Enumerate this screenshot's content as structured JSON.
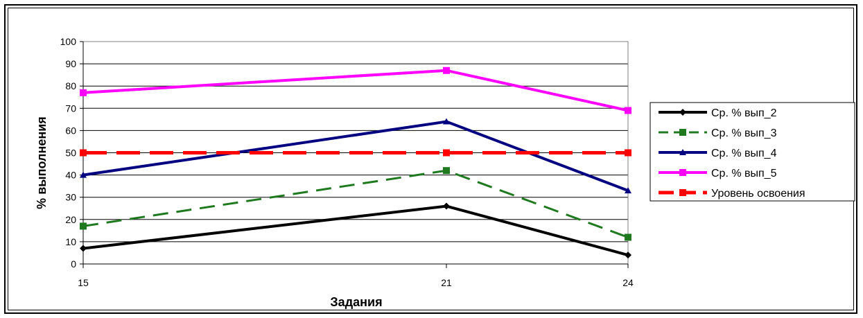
{
  "chart_data": {
    "type": "line",
    "title": "",
    "xlabel": "Задания",
    "ylabel": "% выполнения",
    "x": [
      "15",
      "21",
      "24"
    ],
    "ylim": [
      0,
      100
    ],
    "yticks": [
      "0",
      "10",
      "20",
      "30",
      "40",
      "50",
      "60",
      "70",
      "80",
      "90",
      "100"
    ],
    "grid": "horizontal",
    "legend_position": "right",
    "series": [
      {
        "name": "Ср. % вып_2",
        "values": [
          7,
          26,
          4
        ],
        "color": "#000000",
        "marker": "diamond",
        "dash": "solid"
      },
      {
        "name": "Ср. % вып_3",
        "values": [
          17,
          42,
          12
        ],
        "color": "#1f7a1f",
        "marker": "square",
        "dash": "dashed"
      },
      {
        "name": "Ср. % вып_4",
        "values": [
          40,
          64,
          33
        ],
        "color": "#000080",
        "marker": "triangle",
        "dash": "solid"
      },
      {
        "name": "Ср. % вып_5",
        "values": [
          77,
          87,
          69
        ],
        "color": "#ff00ff",
        "marker": "square",
        "dash": "solid"
      },
      {
        "name": "Уровень освоения",
        "values": [
          50,
          50,
          50
        ],
        "color": "#ff0000",
        "marker": "square",
        "dash": "longdash"
      }
    ]
  }
}
